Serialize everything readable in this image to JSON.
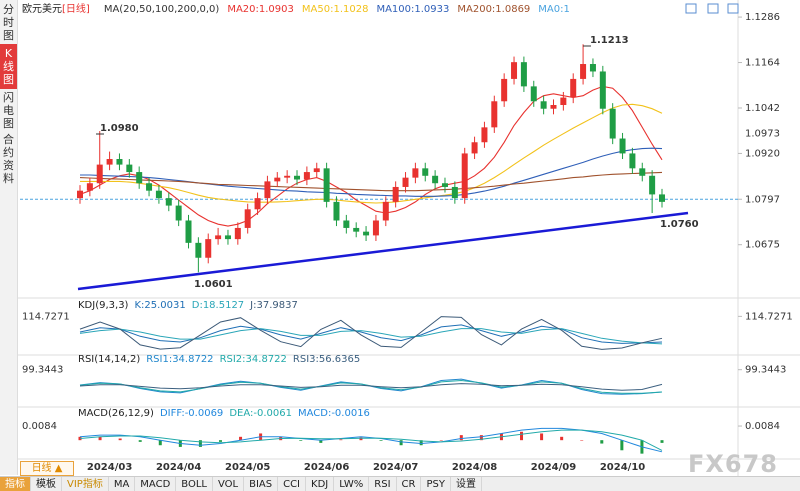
{
  "sidebar": [
    "分时图",
    "K线图",
    "闪电图",
    "合约资料"
  ],
  "chart_data": [
    {
      "type": "candlestick",
      "title": "欧元美元",
      "period": "[日线]",
      "indicator": "MA(20,50,100,200,0,0)",
      "categories": [
        null,
        null,
        null,
        "2024/03",
        null,
        null,
        null,
        null,
        null,
        null,
        "2024/04",
        null,
        null,
        null,
        null,
        null,
        null,
        "2024/05",
        null,
        null,
        null,
        null,
        null,
        null,
        null,
        "2024/06",
        null,
        null,
        null,
        null,
        null,
        null,
        "2024/07",
        null,
        null,
        null,
        null,
        null,
        null,
        null,
        "2024/08",
        null,
        null,
        null,
        null,
        null,
        null,
        null,
        "2024/09",
        null,
        null,
        null,
        null,
        null,
        null,
        "2024/10",
        null,
        null,
        null,
        null
      ],
      "open": [
        1.08,
        1.082,
        1.084,
        1.089,
        1.0905,
        1.089,
        1.087,
        1.084,
        1.082,
        1.08,
        1.078,
        1.074,
        1.068,
        1.064,
        1.069,
        1.07,
        1.069,
        1.072,
        1.077,
        1.08,
        1.0845,
        1.0855,
        1.086,
        1.085,
        1.087,
        1.088,
        1.079,
        1.074,
        1.072,
        1.071,
        1.07,
        1.074,
        1.079,
        1.083,
        1.0855,
        1.088,
        1.086,
        1.084,
        1.083,
        1.08,
        1.092,
        1.095,
        1.099,
        1.106,
        1.112,
        1.1165,
        1.11,
        1.106,
        1.104,
        1.105,
        1.107,
        1.112,
        1.116,
        1.114,
        1.104,
        1.096,
        1.092,
        1.088,
        1.086,
        1.081
      ],
      "high": [
        1.0835,
        1.0855,
        1.098,
        1.0925,
        1.092,
        1.0905,
        1.0885,
        1.0855,
        1.0835,
        1.0815,
        1.0795,
        1.0755,
        1.0695,
        1.0705,
        1.072,
        1.0715,
        1.0735,
        1.0785,
        1.0815,
        1.086,
        1.087,
        1.0875,
        1.0875,
        1.0885,
        1.0895,
        1.0895,
        1.0805,
        1.0755,
        1.0735,
        1.0725,
        1.0755,
        1.0805,
        1.0845,
        1.087,
        1.0895,
        1.0895,
        1.0875,
        1.0855,
        1.0845,
        1.0935,
        1.0965,
        1.1005,
        1.1075,
        1.1135,
        1.118,
        1.118,
        1.1115,
        1.1075,
        1.1065,
        1.1085,
        1.1135,
        1.1213,
        1.1175,
        1.1155,
        1.1055,
        1.0975,
        1.0935,
        1.0895,
        1.0875,
        1.0825
      ],
      "low": [
        1.0785,
        1.0805,
        1.0825,
        1.0875,
        1.0875,
        1.0855,
        1.0825,
        1.0805,
        1.0785,
        1.0765,
        1.0725,
        1.0665,
        1.0601,
        1.0625,
        1.0675,
        1.0675,
        1.0675,
        1.0705,
        1.0755,
        1.0785,
        1.083,
        1.084,
        1.0835,
        1.0835,
        1.0855,
        1.0775,
        1.0725,
        1.0705,
        1.0695,
        1.0685,
        1.0685,
        1.0725,
        1.0775,
        1.0815,
        1.084,
        1.0845,
        1.0825,
        1.0815,
        1.0785,
        1.0785,
        1.0905,
        1.0935,
        1.0975,
        1.1045,
        1.1105,
        1.1085,
        1.1045,
        1.1025,
        1.1025,
        1.1035,
        1.1055,
        1.1105,
        1.1125,
        1.1025,
        1.0945,
        1.0905,
        1.0865,
        1.0845,
        1.076,
        1.0775
      ],
      "close": [
        1.082,
        1.084,
        1.089,
        1.0905,
        1.089,
        1.087,
        1.084,
        1.082,
        1.08,
        1.078,
        1.074,
        1.068,
        1.064,
        1.069,
        1.07,
        1.069,
        1.072,
        1.077,
        1.08,
        1.0845,
        1.0855,
        1.086,
        1.085,
        1.087,
        1.088,
        1.079,
        1.074,
        1.072,
        1.071,
        1.07,
        1.074,
        1.079,
        1.083,
        1.0855,
        1.088,
        1.086,
        1.084,
        1.083,
        1.08,
        1.092,
        1.095,
        1.099,
        1.106,
        1.112,
        1.1165,
        1.11,
        1.106,
        1.104,
        1.105,
        1.107,
        1.112,
        1.116,
        1.114,
        1.104,
        1.096,
        1.092,
        1.088,
        1.086,
        1.081,
        1.079
      ],
      "up_color": "#e8322f",
      "down_color": "#1f9d45",
      "series": [
        {
          "name": "MA20:1.0903",
          "color": "#e8322f",
          "values": [
            1.081,
            1.082,
            1.0835,
            1.085,
            1.086,
            1.0865,
            1.086,
            1.085,
            1.0835,
            1.0815,
            1.0795,
            1.0775,
            1.0755,
            1.074,
            1.073,
            1.0725,
            1.073,
            1.074,
            1.076,
            1.0785,
            1.0805,
            1.0825,
            1.084,
            1.085,
            1.0855,
            1.0845,
            1.083,
            1.0815,
            1.0795,
            1.078,
            1.0765,
            1.076,
            1.0765,
            1.0775,
            1.079,
            1.081,
            1.0825,
            1.0835,
            1.084,
            1.0845,
            1.086,
            1.088,
            1.091,
            1.095,
            1.0995,
            1.103,
            1.106,
            1.1075,
            1.108,
            1.1075,
            1.107,
            1.1075,
            1.109,
            1.11,
            1.1095,
            1.107,
            1.1035,
            1.099,
            1.0945,
            1.0903
          ]
        },
        {
          "name": "MA50:1.1028",
          "color": "#f2c21b",
          "values": [
            1.0845,
            1.0845,
            1.0845,
            1.0845,
            1.0845,
            1.0843,
            1.084,
            1.0836,
            1.0832,
            1.0828,
            1.0822,
            1.0815,
            1.0808,
            1.0802,
            1.0798,
            1.0795,
            1.0792,
            1.079,
            1.0789,
            1.0789,
            1.079,
            1.0791,
            1.0793,
            1.0795,
            1.0797,
            1.0797,
            1.0795,
            1.0792,
            1.079,
            1.0788,
            1.0787,
            1.0788,
            1.079,
            1.0793,
            1.0797,
            1.0801,
            1.0805,
            1.0808,
            1.0812,
            1.0818,
            1.0828,
            1.084,
            1.0855,
            1.0872,
            1.089,
            1.0908,
            1.0925,
            1.0942,
            1.0958,
            1.0973,
            1.0988,
            1.1002,
            1.1016,
            1.103,
            1.1042,
            1.105,
            1.1052,
            1.1048,
            1.104,
            1.1028
          ]
        },
        {
          "name": "MA100:1.0933",
          "color": "#2f5fb8",
          "values": [
            1.0862,
            1.0862,
            1.0861,
            1.086,
            1.0859,
            1.0858,
            1.0857,
            1.0855,
            1.0853,
            1.085,
            1.0847,
            1.0844,
            1.0841,
            1.0838,
            1.0835,
            1.0832,
            1.083,
            1.0828,
            1.0826,
            1.0824,
            1.0822,
            1.082,
            1.0819,
            1.0817,
            1.0816,
            1.0815,
            1.0813,
            1.0812,
            1.081,
            1.0809,
            1.0808,
            1.0807,
            1.0806,
            1.0806,
            1.0805,
            1.0805,
            1.0805,
            1.0806,
            1.0807,
            1.081,
            1.0814,
            1.0819,
            1.0825,
            1.0832,
            1.084,
            1.0848,
            1.0856,
            1.0864,
            1.0872,
            1.088,
            1.0888,
            1.0896,
            1.0905,
            1.0913,
            1.092,
            1.0926,
            1.093,
            1.0933,
            1.0934,
            1.0933
          ]
        },
        {
          "name": "MA200:1.0869",
          "color": "#a0522d",
          "values": [
            1.0855,
            1.0854,
            1.0853,
            1.0852,
            1.0851,
            1.085,
            1.0849,
            1.0848,
            1.0847,
            1.0846,
            1.0845,
            1.0843,
            1.0841,
            1.0839,
            1.0837,
            1.0836,
            1.0835,
            1.0834,
            1.0833,
            1.0832,
            1.0831,
            1.083,
            1.0829,
            1.0828,
            1.0827,
            1.0826,
            1.0825,
            1.0824,
            1.0823,
            1.0822,
            1.0821,
            1.082,
            1.082,
            1.082,
            1.082,
            1.0821,
            1.0822,
            1.0823,
            1.0824,
            1.0826,
            1.0828,
            1.083,
            1.0832,
            1.0835,
            1.0838,
            1.084,
            1.0843,
            1.0846,
            1.0849,
            1.0852,
            1.0855,
            1.0857,
            1.086,
            1.0862,
            1.0864,
            1.0865,
            1.0866,
            1.0867,
            1.0868,
            1.0869
          ]
        }
      ],
      "extra_legend": {
        "name": "MA0:1",
        "color": "#4aa3df"
      },
      "ylim": [
        1.054,
        1.1305
      ],
      "yticks": [
        1.1286,
        1.1164,
        1.1042,
        {
          "value": 1.092,
          "label": "1.0920"
        },
        1.0797,
        1.0675
      ],
      "price_line": {
        "value": 1.0797,
        "color": "#4aa3df"
      },
      "marker": {
        "value": 1.0973,
        "label": "1.0973",
        "color": "#f08a00"
      },
      "trendline": {
        "color": "#1a1ad6",
        "values": [
          1.0556,
          1.076
        ]
      },
      "annotations": [
        {
          "text": "1.0980",
          "color": "#e8322f"
        },
        {
          "text": "1.1213",
          "color": "#e8322f"
        },
        {
          "text": "1.0601",
          "color": "#1f9d45"
        },
        {
          "text": "1.0760",
          "color": "#1f9d45"
        }
      ]
    },
    {
      "type": "line",
      "title": "KDJ(9,3,3)",
      "ylim": [
        -10,
        130
      ],
      "yticks": [
        114.7271
      ],
      "series": [
        {
          "name": "K:25.0031",
          "color": "#1f6fb5",
          "values": [
            60,
            75,
            70,
            45,
            30,
            25,
            40,
            65,
            80,
            70,
            50,
            35,
            55,
            75,
            60,
            40,
            30,
            50,
            78,
            85,
            65,
            45,
            60,
            80,
            70,
            40,
            25,
            20,
            22,
            25.0031
          ]
        },
        {
          "name": "D:18.5127",
          "color": "#2aa6b8",
          "values": [
            55,
            65,
            70,
            60,
            45,
            35,
            35,
            50,
            65,
            72,
            62,
            48,
            48,
            62,
            65,
            55,
            42,
            45,
            60,
            72,
            72,
            60,
            55,
            68,
            72,
            55,
            38,
            28,
            22,
            18.5127
          ]
        },
        {
          "name": "J:37.9837",
          "color": "#3c5a78",
          "values": [
            70,
            95,
            70,
            15,
            0,
            5,
            50,
            95,
            110,
            66,
            26,
            9,
            69,
            101,
            50,
            10,
            6,
            60,
            114,
            111,
            51,
            15,
            70,
            104,
            66,
            10,
            -1,
            4,
            22,
            37.9837
          ]
        }
      ]
    },
    {
      "type": "line",
      "title": "RSI(14,14,2)",
      "ylim": [
        0,
        110
      ],
      "yticks": [
        99.3443
      ],
      "series": [
        {
          "name": "RSI1:34.8722",
          "color": "#2288cc",
          "values": [
            55,
            62,
            58,
            45,
            35,
            32,
            45,
            58,
            66,
            60,
            48,
            40,
            52,
            64,
            58,
            45,
            38,
            50,
            68,
            72,
            60,
            46,
            55,
            68,
            60,
            42,
            30,
            28,
            30,
            34.8722
          ]
        },
        {
          "name": "RSI2:34.8722",
          "color": "#22aaaa",
          "values": [
            54,
            60,
            58,
            47,
            38,
            35,
            44,
            56,
            63,
            60,
            50,
            43,
            51,
            61,
            58,
            47,
            41,
            49,
            64,
            68,
            61,
            49,
            54,
            64,
            60,
            45,
            34,
            31,
            31,
            34.8722
          ]
        },
        {
          "name": "RSI3:56.6365",
          "color": "#3c6080",
          "values": [
            52,
            56,
            56,
            51,
            46,
            44,
            47,
            52,
            56,
            56,
            52,
            48,
            50,
            54,
            54,
            50,
            47,
            50,
            56,
            59,
            57,
            53,
            54,
            57,
            56,
            50,
            43,
            40,
            42,
            56.6365
          ]
        }
      ]
    },
    {
      "type": "macd",
      "title": "MACD(26,12,9)",
      "ylim": [
        -0.01,
        0.012
      ],
      "yticks": [
        0.0084
      ],
      "up_color": "#e8322f",
      "down_color": "#1f9d45",
      "series": [
        {
          "name": "DIFF:-0.0069",
          "color": "#2288dd",
          "values": [
            0.002,
            0.003,
            0.003,
            0.002,
            0,
            -0.002,
            -0.003,
            -0.002,
            0,
            0.002,
            0.002,
            0.001,
            0,
            0.001,
            0.002,
            0.001,
            -0.001,
            -0.002,
            -0.001,
            0.001,
            0.002,
            0.004,
            0.006,
            0.007,
            0.007,
            0.006,
            0.004,
            0,
            -0.004,
            -0.0069
          ]
        },
        {
          "name": "DEA:-0.0061",
          "color": "#22aaaa",
          "values": [
            0.001,
            0.002,
            0.0025,
            0.0025,
            0.0015,
            0,
            -0.001,
            -0.0015,
            -0.001,
            0,
            0.001,
            0.0012,
            0.0008,
            0.0008,
            0.0012,
            0.0012,
            0.0005,
            -0.0005,
            -0.001,
            -0.0005,
            0.0005,
            0.002,
            0.0035,
            0.005,
            0.006,
            0.006,
            0.005,
            0.003,
            0,
            -0.0061
          ]
        }
      ],
      "histogram": {
        "name": "MACD:-0.0016",
        "color": "#2288dd",
        "values": [
          0.002,
          0.002,
          0.001,
          -0.001,
          -0.003,
          -0.004,
          -0.004,
          -0.001,
          0.002,
          0.004,
          0.002,
          -0.0004,
          -0.0016,
          0.0004,
          0.0016,
          -0.0004,
          -0.003,
          -0.003,
          0,
          0.003,
          0.003,
          0.004,
          0.005,
          0.004,
          0.002,
          0,
          -0.002,
          -0.006,
          -0.008,
          -0.0016
        ]
      }
    }
  ],
  "toolbar": {
    "period": "日线 ▲",
    "buttons": [
      "指标",
      "模板",
      "VIP指标",
      "MA",
      "MACD",
      "BOLL",
      "VOL",
      "BIAS",
      "CCI",
      "KDJ",
      "LW%",
      "RSI",
      "CR",
      "PSY",
      "设置"
    ]
  },
  "watermark": "FX678"
}
